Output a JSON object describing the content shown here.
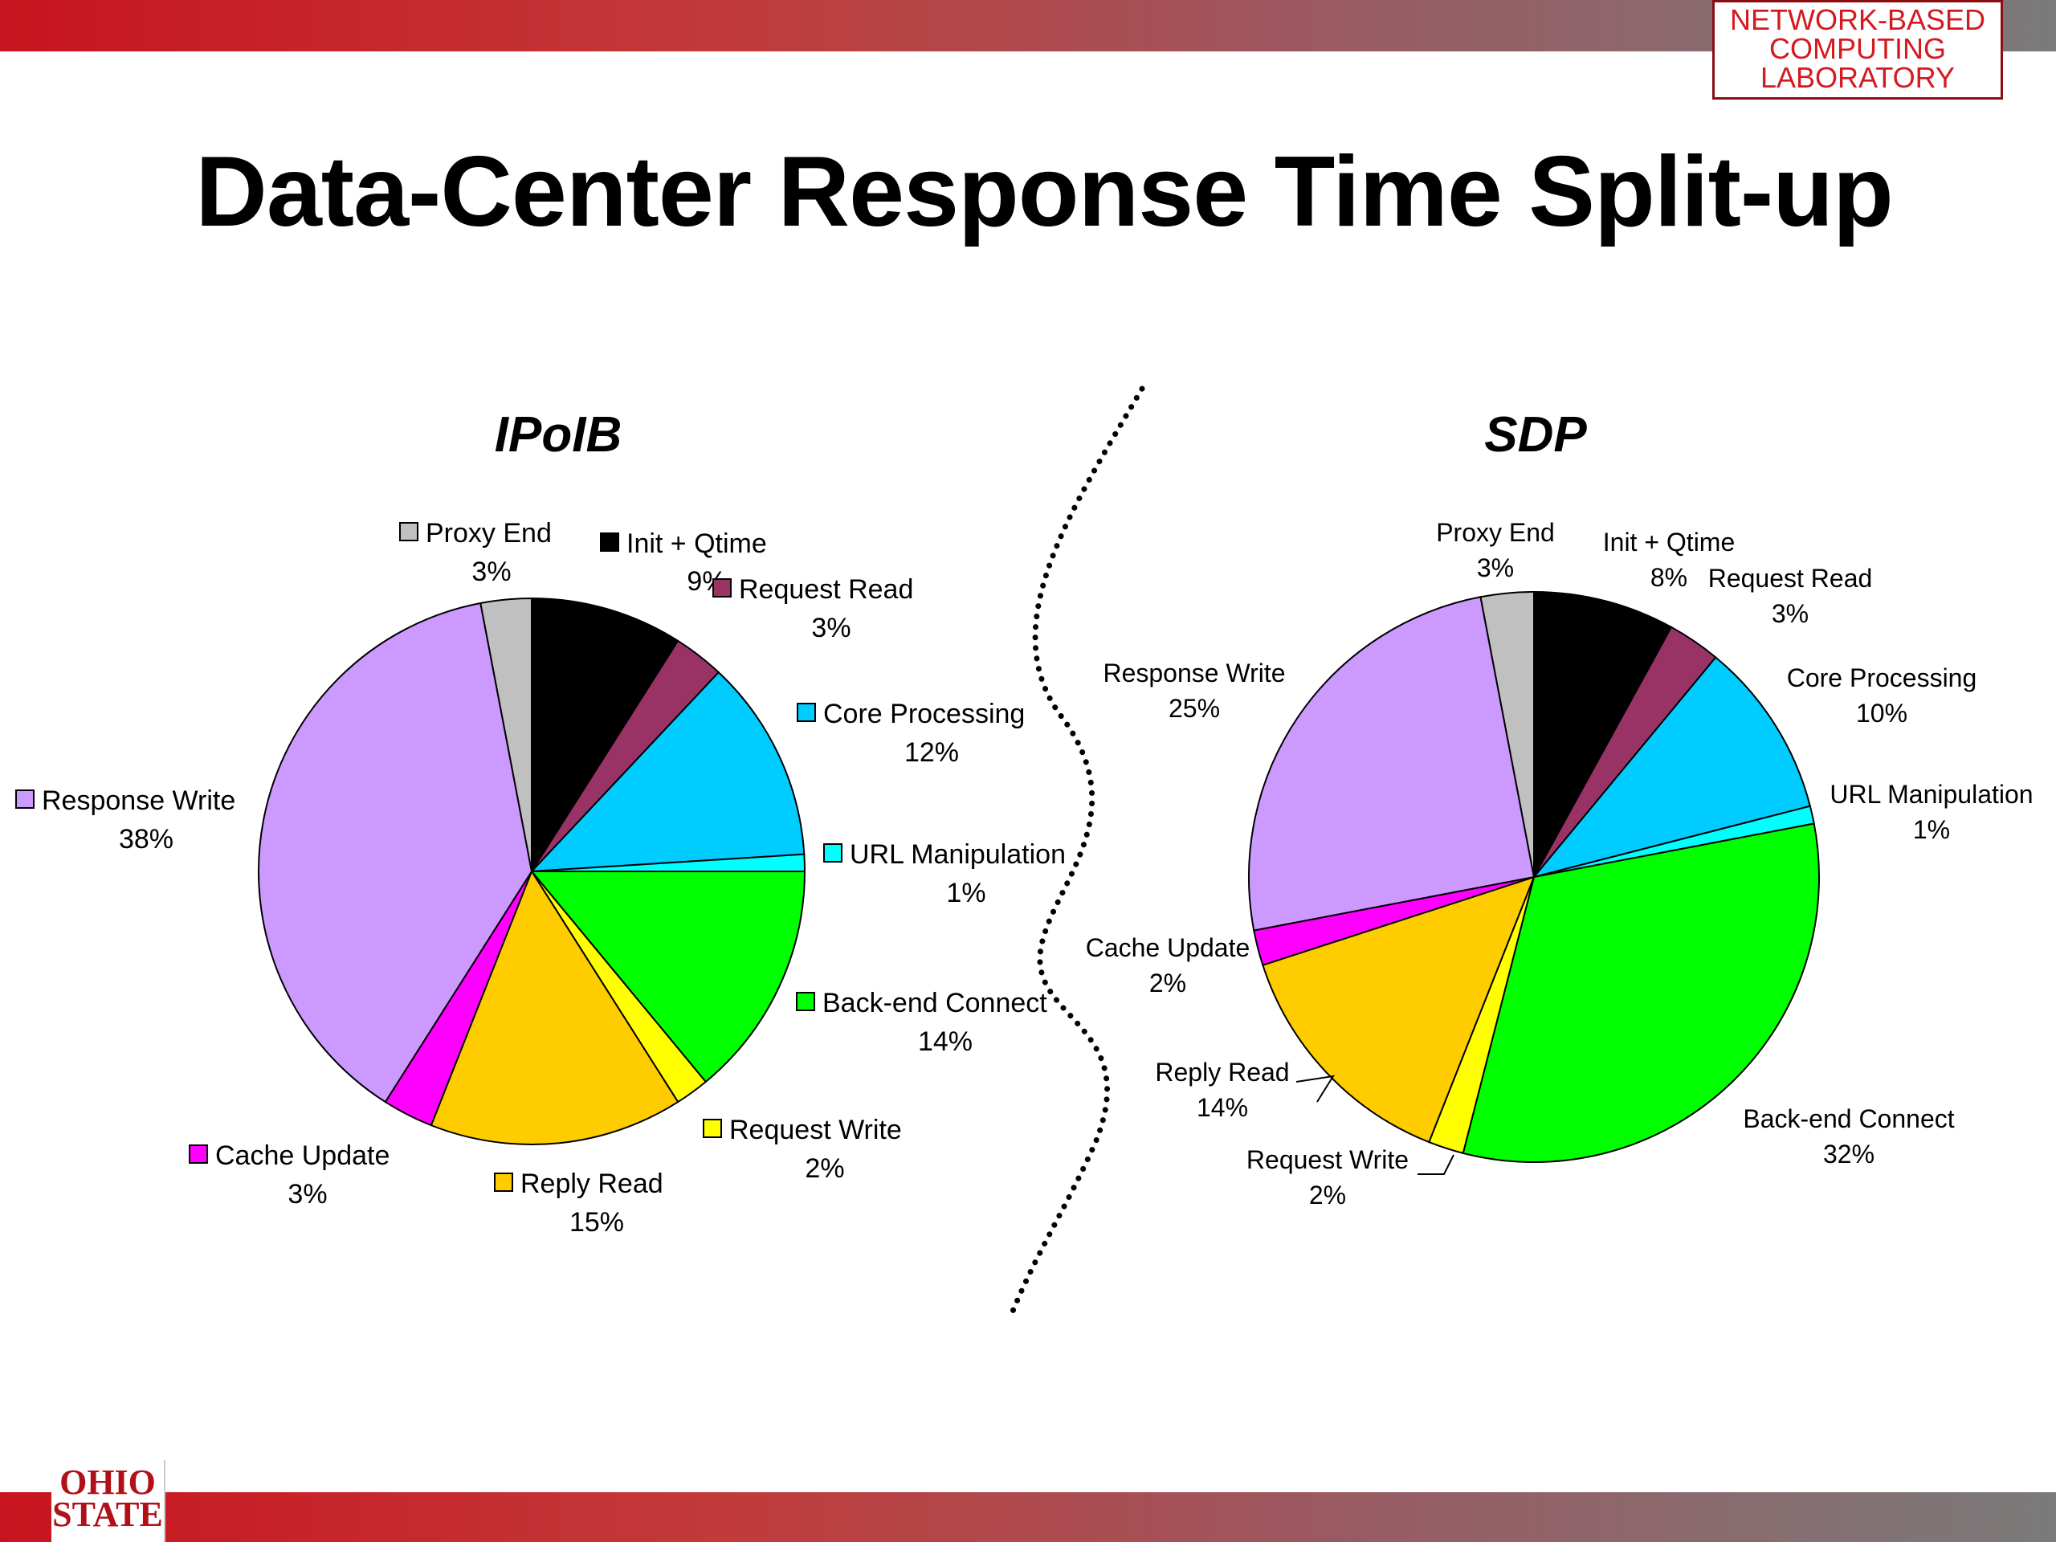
{
  "slide": {
    "title": "Data-Center Response Time Split-up",
    "lab_logo_lines": [
      "NETWORK-BASED",
      "COMPUTING",
      "LABORATORY"
    ],
    "university_logo_lines": [
      "OHIO",
      "STATE"
    ]
  },
  "chart_data": [
    {
      "type": "pie",
      "title": "IPoIB",
      "slices": [
        {
          "label": "Init + Qtime",
          "value": 9,
          "pct": "9%",
          "color": "#000000"
        },
        {
          "label": "Request Read",
          "value": 3,
          "pct": "3%",
          "color": "#993366"
        },
        {
          "label": "Core Processing",
          "value": 12,
          "pct": "12%",
          "color": "#00ccff"
        },
        {
          "label": "URL Manipulation",
          "value": 1,
          "pct": "1%",
          "color": "#00ffff"
        },
        {
          "label": "Back-end Connect",
          "value": 14,
          "pct": "14%",
          "color": "#00ff00"
        },
        {
          "label": "Request Write",
          "value": 2,
          "pct": "2%",
          "color": "#ffff00"
        },
        {
          "label": "Reply Read",
          "value": 15,
          "pct": "15%",
          "color": "#ffcc00"
        },
        {
          "label": "Cache Update",
          "value": 3,
          "pct": "3%",
          "color": "#ff00ff"
        },
        {
          "label": "Response Write",
          "value": 38,
          "pct": "38%",
          "color": "#cc99ff"
        },
        {
          "label": "Proxy End",
          "value": 3,
          "pct": "3%",
          "color": "#c0c0c0"
        }
      ]
    },
    {
      "type": "pie",
      "title": "SDP",
      "slices": [
        {
          "label": "Init + Qtime",
          "value": 8,
          "pct": "8%",
          "color": "#000000"
        },
        {
          "label": "Request Read",
          "value": 3,
          "pct": "3%",
          "color": "#993366"
        },
        {
          "label": "Core Processing",
          "value": 10,
          "pct": "10%",
          "color": "#00ccff"
        },
        {
          "label": "URL Manipulation",
          "value": 1,
          "pct": "1%",
          "color": "#00ffff"
        },
        {
          "label": "Back-end Connect",
          "value": 32,
          "pct": "32%",
          "color": "#00ff00"
        },
        {
          "label": "Request Write",
          "value": 2,
          "pct": "2%",
          "color": "#ffff00"
        },
        {
          "label": "Reply Read",
          "value": 14,
          "pct": "14%",
          "color": "#ffcc00"
        },
        {
          "label": "Cache Update",
          "value": 2,
          "pct": "2%",
          "color": "#ff00ff"
        },
        {
          "label": "Response Write",
          "value": 25,
          "pct": "25%",
          "color": "#cc99ff"
        },
        {
          "label": "Proxy End",
          "value": 3,
          "pct": "3%",
          "color": "#c0c0c0"
        }
      ]
    }
  ]
}
